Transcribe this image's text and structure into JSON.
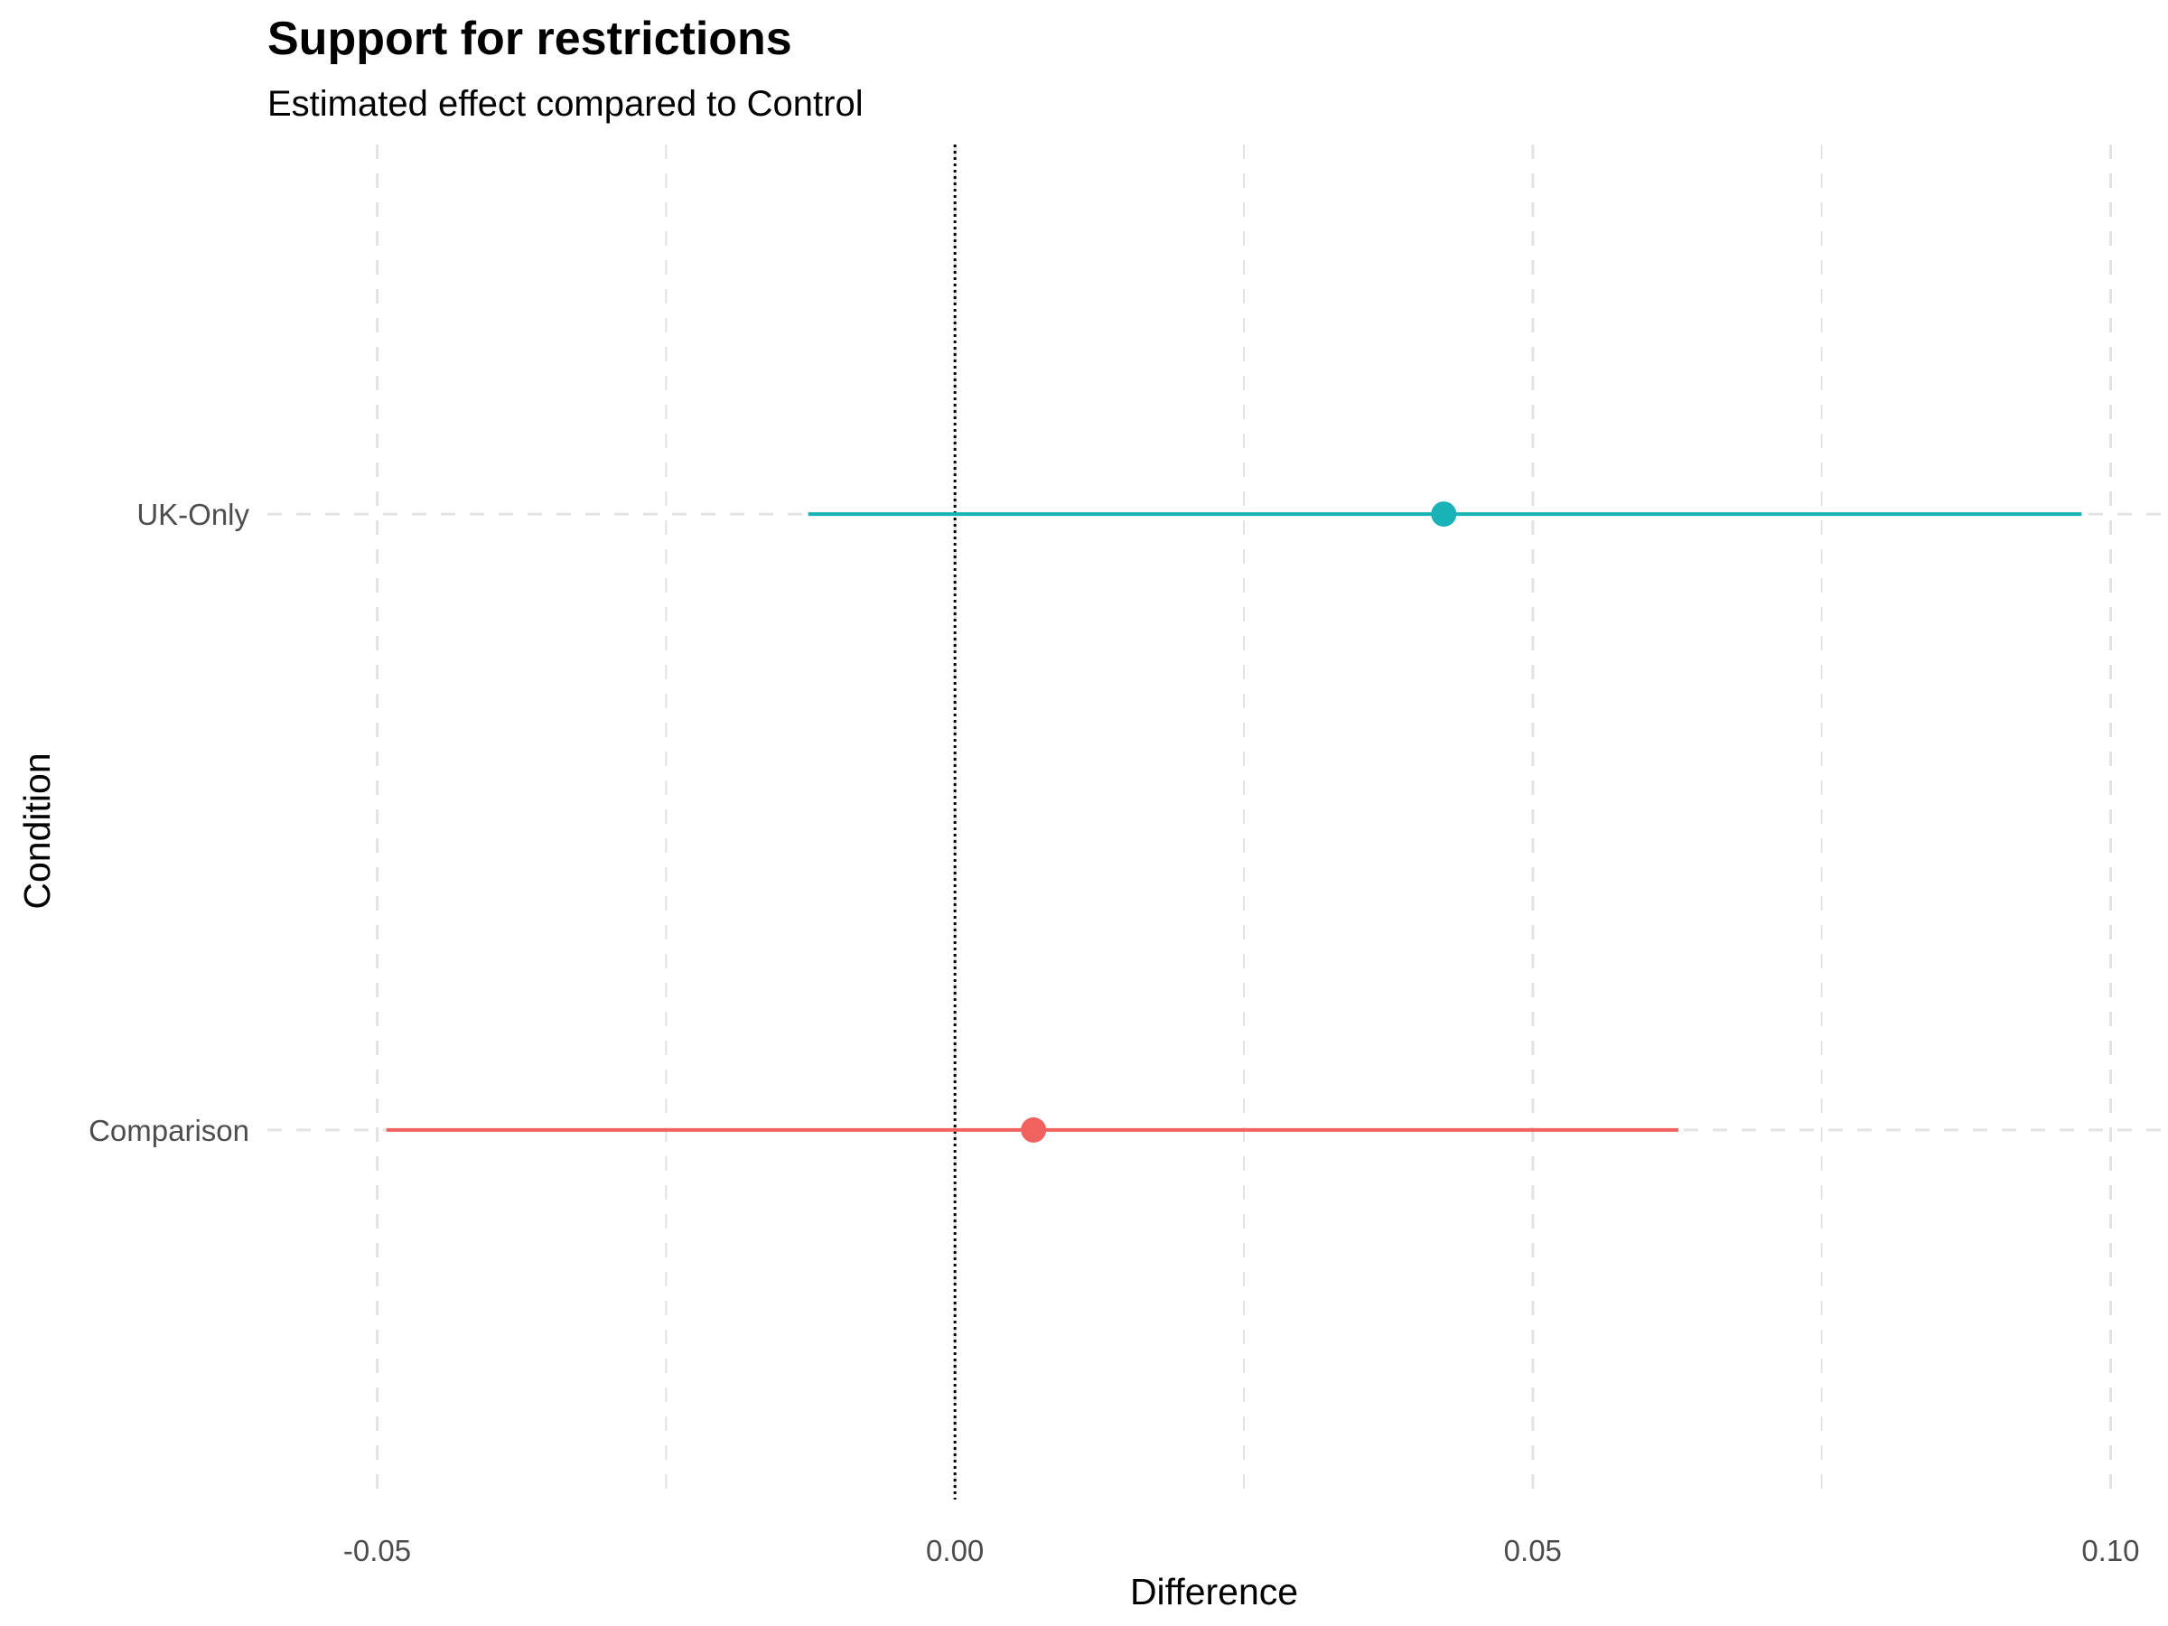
{
  "chart_data": {
    "type": "scatter",
    "title": "Support for restrictions",
    "subtitle": "Estimated effect compared to Control",
    "xlabel": "Difference",
    "ylabel": "Condition",
    "xlim": [
      -0.0595,
      0.1045
    ],
    "x_ticks": [
      -0.05,
      0.0,
      0.05,
      0.1
    ],
    "x_tick_labels": [
      "-0.05",
      "0.00",
      "0.05",
      "0.10"
    ],
    "x_minor_ticks": [
      -0.025,
      0.025,
      0.075
    ],
    "categories": [
      "Comparison",
      "UK-Only"
    ],
    "reference_line": 0,
    "grid": true,
    "legend": "none",
    "series": [
      {
        "category": "UK-Only",
        "estimate": 0.0423,
        "ci_low": -0.0127,
        "ci_high": 0.0975,
        "color": "#19b2b6"
      },
      {
        "category": "Comparison",
        "estimate": 0.0068,
        "ci_low": -0.0492,
        "ci_high": 0.0626,
        "color": "#f0625d"
      }
    ]
  }
}
